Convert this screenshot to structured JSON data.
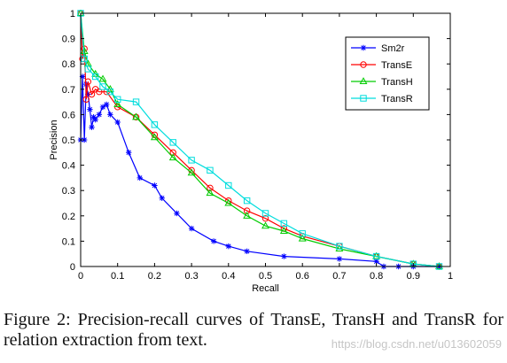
{
  "chart_data": {
    "type": "line",
    "xlabel": "Recall",
    "ylabel": "Precision",
    "xlim": [
      0,
      1
    ],
    "ylim": [
      0,
      1
    ],
    "xticks": [
      0,
      0.1,
      0.2,
      0.3,
      0.4,
      0.5,
      0.6,
      0.7,
      0.8,
      0.9,
      1
    ],
    "yticks": [
      0,
      0.1,
      0.2,
      0.3,
      0.4,
      0.5,
      0.6,
      0.7,
      0.8,
      0.9,
      1
    ],
    "grid": false,
    "legend_position": "top-right",
    "series": [
      {
        "name": "Sm2r",
        "color": "#0000ff",
        "marker": "star",
        "points": [
          [
            0.0,
            0.5
          ],
          [
            0.005,
            0.75
          ],
          [
            0.01,
            0.5
          ],
          [
            0.015,
            0.72
          ],
          [
            0.02,
            0.68
          ],
          [
            0.025,
            0.62
          ],
          [
            0.03,
            0.55
          ],
          [
            0.035,
            0.59
          ],
          [
            0.04,
            0.58
          ],
          [
            0.05,
            0.6
          ],
          [
            0.06,
            0.63
          ],
          [
            0.07,
            0.64
          ],
          [
            0.08,
            0.6
          ],
          [
            0.1,
            0.57
          ],
          [
            0.13,
            0.45
          ],
          [
            0.16,
            0.35
          ],
          [
            0.2,
            0.32
          ],
          [
            0.22,
            0.27
          ],
          [
            0.26,
            0.21
          ],
          [
            0.3,
            0.15
          ],
          [
            0.36,
            0.1
          ],
          [
            0.4,
            0.08
          ],
          [
            0.45,
            0.06
          ],
          [
            0.55,
            0.04
          ],
          [
            0.7,
            0.03
          ],
          [
            0.8,
            0.02
          ],
          [
            0.82,
            0.0
          ],
          [
            0.86,
            0.0
          ],
          [
            0.9,
            0.0
          ],
          [
            0.97,
            0.0
          ]
        ]
      },
      {
        "name": "TransE",
        "color": "#ff0000",
        "marker": "circle",
        "points": [
          [
            0.0,
            1.0
          ],
          [
            0.005,
            0.82
          ],
          [
            0.01,
            0.86
          ],
          [
            0.015,
            0.66
          ],
          [
            0.02,
            0.73
          ],
          [
            0.03,
            0.68
          ],
          [
            0.04,
            0.7
          ],
          [
            0.05,
            0.69
          ],
          [
            0.07,
            0.69
          ],
          [
            0.1,
            0.63
          ],
          [
            0.15,
            0.59
          ],
          [
            0.2,
            0.52
          ],
          [
            0.25,
            0.45
          ],
          [
            0.3,
            0.38
          ],
          [
            0.35,
            0.31
          ],
          [
            0.4,
            0.26
          ],
          [
            0.45,
            0.22
          ],
          [
            0.5,
            0.19
          ],
          [
            0.55,
            0.15
          ],
          [
            0.6,
            0.12
          ],
          [
            0.7,
            0.08
          ],
          [
            0.8,
            0.04
          ],
          [
            0.9,
            0.01
          ],
          [
            0.97,
            0.0
          ]
        ]
      },
      {
        "name": "TransH",
        "color": "#00cc00",
        "marker": "triangle",
        "points": [
          [
            0.0,
            1.0
          ],
          [
            0.01,
            0.85
          ],
          [
            0.02,
            0.8
          ],
          [
            0.04,
            0.76
          ],
          [
            0.06,
            0.74
          ],
          [
            0.08,
            0.7
          ],
          [
            0.1,
            0.64
          ],
          [
            0.15,
            0.59
          ],
          [
            0.2,
            0.51
          ],
          [
            0.25,
            0.43
          ],
          [
            0.3,
            0.37
          ],
          [
            0.35,
            0.29
          ],
          [
            0.4,
            0.25
          ],
          [
            0.45,
            0.2
          ],
          [
            0.5,
            0.16
          ],
          [
            0.55,
            0.14
          ],
          [
            0.6,
            0.11
          ],
          [
            0.7,
            0.07
          ],
          [
            0.8,
            0.04
          ],
          [
            0.9,
            0.01
          ],
          [
            0.97,
            0.0
          ]
        ]
      },
      {
        "name": "TransR",
        "color": "#00dddd",
        "marker": "square",
        "points": [
          [
            0.0,
            1.0
          ],
          [
            0.01,
            0.82
          ],
          [
            0.02,
            0.78
          ],
          [
            0.04,
            0.75
          ],
          [
            0.06,
            0.71
          ],
          [
            0.08,
            0.69
          ],
          [
            0.1,
            0.66
          ],
          [
            0.15,
            0.65
          ],
          [
            0.2,
            0.56
          ],
          [
            0.25,
            0.49
          ],
          [
            0.3,
            0.42
          ],
          [
            0.35,
            0.38
          ],
          [
            0.4,
            0.32
          ],
          [
            0.45,
            0.26
          ],
          [
            0.5,
            0.21
          ],
          [
            0.55,
            0.17
          ],
          [
            0.6,
            0.13
          ],
          [
            0.7,
            0.08
          ],
          [
            0.8,
            0.04
          ],
          [
            0.9,
            0.01
          ],
          [
            0.97,
            0.0
          ]
        ]
      }
    ]
  },
  "caption": "Figure 2: Precision-recall curves of TransE, TransH and TransR for relation extraction from text.",
  "watermark": "https://blog.csdn.net/u013602059"
}
